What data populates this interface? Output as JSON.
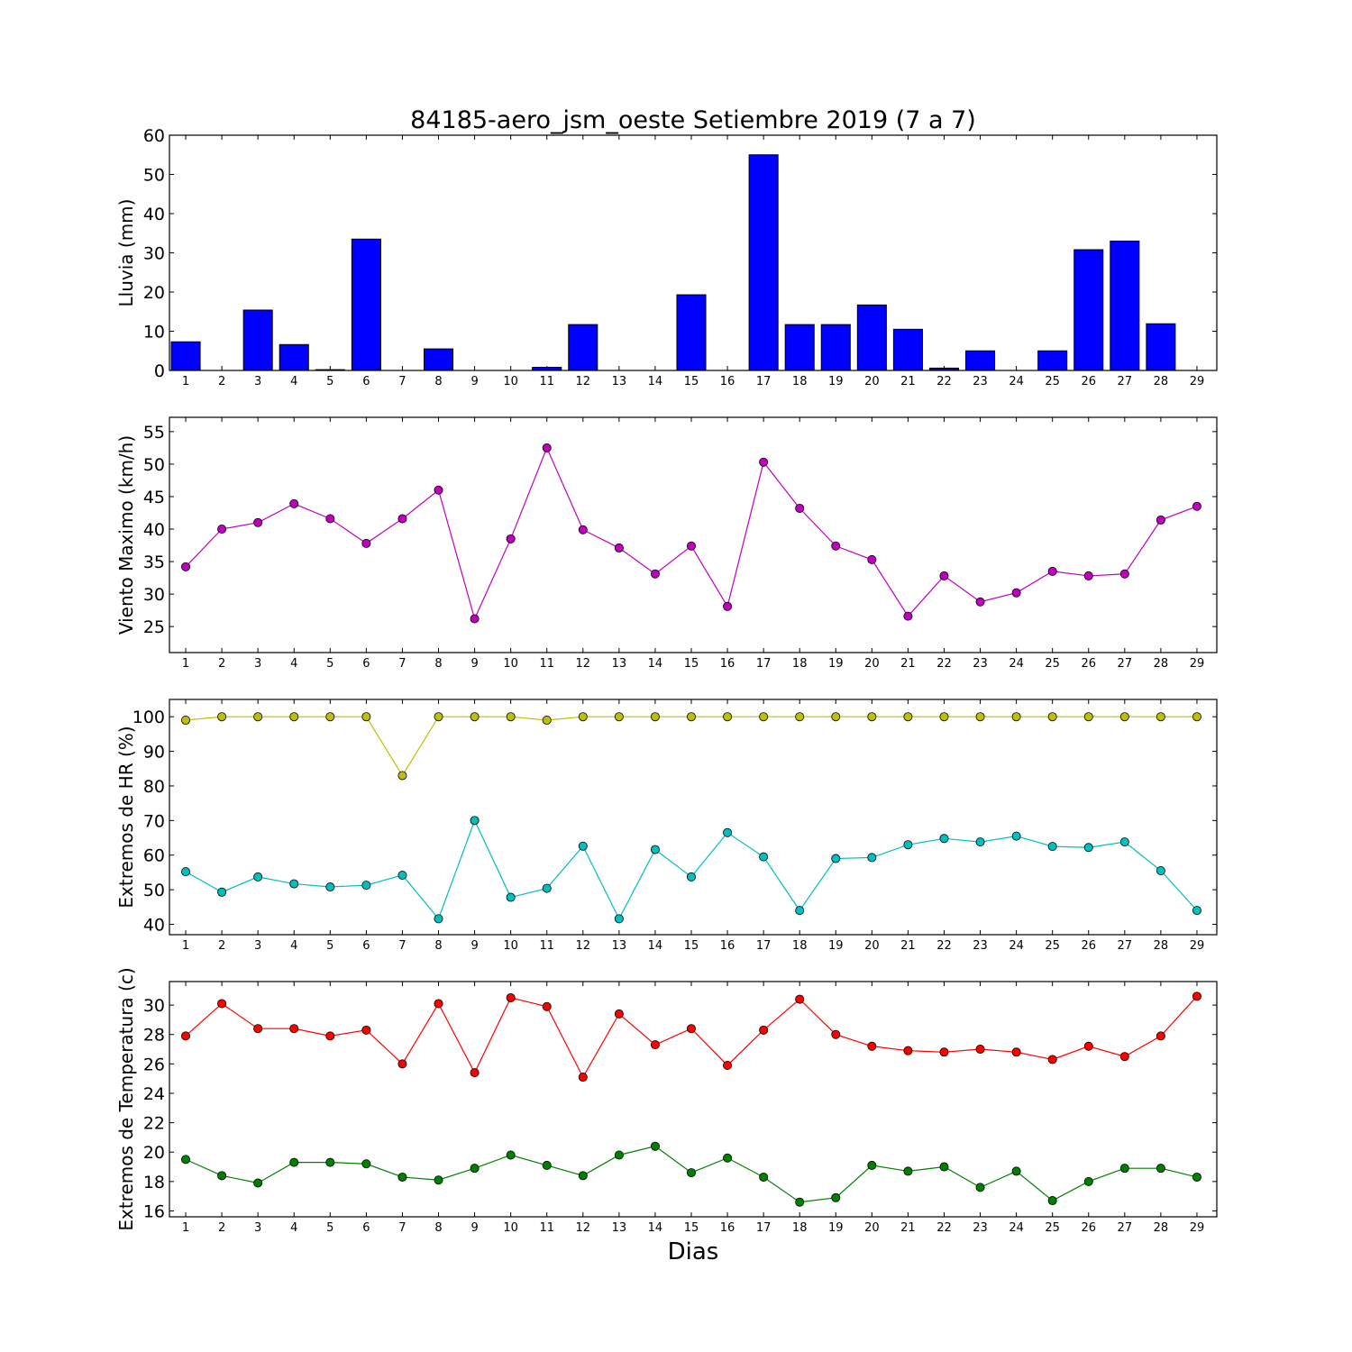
{
  "chart_data": {
    "title": "84185-aero_jsm_oeste Setiembre 2019  (7 a 7)",
    "xlabel": "Dias",
    "days": [
      1,
      2,
      3,
      4,
      5,
      6,
      7,
      8,
      9,
      10,
      11,
      12,
      13,
      14,
      15,
      16,
      17,
      18,
      19,
      20,
      21,
      22,
      23,
      24,
      25,
      26,
      27,
      28,
      29
    ],
    "panels": [
      {
        "type": "bar",
        "ylabel": "Lluvia (mm)",
        "ylim": [
          0,
          60
        ],
        "yticks": [
          0,
          10,
          20,
          30,
          40,
          50,
          60
        ],
        "series": [
          {
            "color": "#0000ff",
            "values": [
              7.3,
              0,
              15.4,
              6.6,
              0.2,
              33.5,
              0,
              5.5,
              0,
              0,
              0.8,
              11.7,
              0,
              0,
              19.3,
              0,
              55.0,
              11.7,
              11.7,
              16.7,
              10.5,
              0.6,
              5.0,
              0,
              5.0,
              30.8,
              33.0,
              11.9,
              0
            ]
          }
        ]
      },
      {
        "type": "line",
        "ylabel": "Viento Maximo (km/h)",
        "ylim": [
          21,
          57.2
        ],
        "yticks": [
          25,
          30,
          35,
          40,
          45,
          50,
          55
        ],
        "series": [
          {
            "color": "#bf00bf",
            "values": [
              34.2,
              40.0,
              41.0,
              43.9,
              41.6,
              37.8,
              41.6,
              46.0,
              26.2,
              38.5,
              52.5,
              39.9,
              37.1,
              33.1,
              37.4,
              28.1,
              50.3,
              43.2,
              37.4,
              35.3,
              26.6,
              32.8,
              28.8,
              30.2,
              33.5,
              32.8,
              33.1,
              41.4,
              43.5
            ]
          }
        ]
      },
      {
        "type": "line",
        "ylabel": "Extremos de HR (%)",
        "ylim": [
          37,
          105
        ],
        "yticks": [
          40,
          50,
          60,
          70,
          80,
          90,
          100
        ],
        "series": [
          {
            "color": "#bfbf00",
            "values": [
              99,
              100,
              100,
              100,
              100,
              100,
              83,
              100,
              100,
              100,
              99,
              100,
              100,
              100,
              100,
              100,
              100,
              100,
              100,
              100,
              100,
              100,
              100,
              100,
              100,
              100,
              100,
              100,
              100
            ]
          },
          {
            "color": "#00bfbf",
            "values": [
              55.2,
              49.3,
              53.7,
              51.7,
              50.8,
              51.3,
              54.2,
              41.6,
              70.0,
              47.8,
              50.4,
              62.6,
              41.6,
              61.6,
              53.7,
              66.5,
              59.5,
              44.0,
              59.0,
              59.3,
              63.0,
              64.8,
              63.8,
              65.5,
              62.5,
              62.2,
              63.8,
              55.5,
              44.0
            ]
          }
        ]
      },
      {
        "type": "line",
        "ylabel": "Extremos de Temperatura (c)",
        "ylim": [
          15.6,
          31.6
        ],
        "yticks": [
          16,
          18,
          20,
          22,
          24,
          26,
          28,
          30
        ],
        "series": [
          {
            "color": "#ff0000",
            "values": [
              27.9,
              30.1,
              28.4,
              28.4,
              27.9,
              28.3,
              26.0,
              30.1,
              25.4,
              30.5,
              29.9,
              25.1,
              29.4,
              27.3,
              28.4,
              25.9,
              28.3,
              30.4,
              28.0,
              27.2,
              26.9,
              26.8,
              27.0,
              26.8,
              26.3,
              27.2,
              26.5,
              27.9,
              30.6
            ]
          },
          {
            "color": "#008000",
            "values": [
              19.5,
              18.4,
              17.9,
              19.3,
              19.3,
              19.2,
              18.3,
              18.1,
              18.9,
              19.8,
              19.1,
              18.4,
              19.8,
              20.4,
              18.6,
              19.6,
              18.3,
              16.6,
              16.9,
              19.1,
              18.7,
              19.0,
              17.6,
              18.7,
              16.7,
              18.0,
              18.9,
              18.9,
              18.3
            ]
          }
        ]
      }
    ]
  }
}
